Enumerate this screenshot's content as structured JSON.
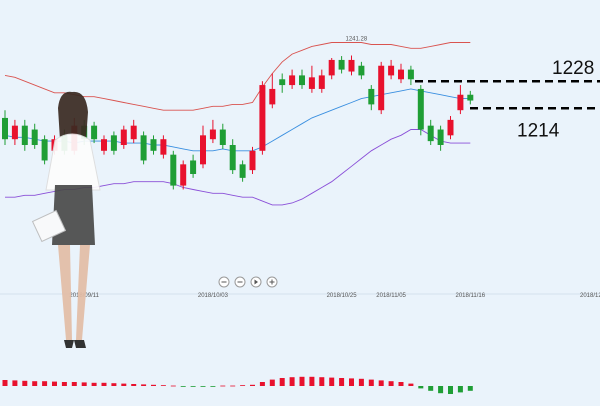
{
  "chart_data": {
    "type": "candlestick",
    "up_color": "#e8112d",
    "down_color": "#1f9e35",
    "ylim": [
      1120,
      1270
    ],
    "categories": [
      null,
      null,
      null,
      null,
      null,
      null,
      null,
      null,
      "2018/09/11",
      null,
      null,
      null,
      null,
      null,
      null,
      null,
      null,
      null,
      null,
      null,
      null,
      "2018/10/03",
      null,
      null,
      null,
      null,
      null,
      null,
      null,
      null,
      null,
      null,
      null,
      null,
      "2018/10/25",
      null,
      null,
      null,
      null,
      "2018/11/05",
      null,
      null,
      null,
      null,
      null,
      null,
      null,
      "2018/11/16"
    ],
    "next_date_label": "2018/12",
    "open": [
      1209,
      1198,
      1205,
      1203,
      1198,
      1192,
      1200,
      1192,
      1205,
      1205,
      1192,
      1200,
      1195,
      1198,
      1200,
      1198,
      1190,
      1190,
      1174,
      1187,
      1185,
      1198,
      1203,
      1195,
      1185,
      1182,
      1192,
      1216,
      1229,
      1226,
      1231,
      1224,
      1224,
      1231,
      1239,
      1233,
      1236,
      1224,
      1213,
      1231,
      1229,
      1234,
      1224,
      1205,
      1203,
      1200,
      1213,
      1221
    ],
    "high": [
      1213,
      1208,
      1208,
      1206,
      1200,
      1200,
      1203,
      1209,
      1208,
      1207,
      1200,
      1202,
      1205,
      1208,
      1202,
      1200,
      1200,
      1192,
      1187,
      1190,
      1205,
      1208,
      1206,
      1198,
      1187,
      1194,
      1228,
      1232,
      1232,
      1234,
      1234,
      1236,
      1234,
      1240,
      1241,
      1241.28,
      1238,
      1226,
      1238,
      1239,
      1237,
      1236,
      1226,
      1208,
      1205,
      1210,
      1226,
      1223
    ],
    "low": [
      1195,
      1195,
      1192,
      1193,
      1185,
      1190,
      1190,
      1190,
      1195,
      1196,
      1190,
      1190,
      1193,
      1196,
      1185,
      1190,
      1188,
      1172,
      1172,
      1178,
      1183,
      1196,
      1193,
      1180,
      1176,
      1180,
      1190,
      1214,
      1222,
      1224,
      1224,
      1222,
      1222,
      1229,
      1232,
      1231,
      1229,
      1213,
      1211,
      1229,
      1227,
      1226,
      1200,
      1195,
      1192,
      1198,
      1211,
      1216
    ],
    "close": [
      1198,
      1205,
      1195,
      1195,
      1187,
      1198,
      1192,
      1205,
      1198,
      1198,
      1198,
      1192,
      1203,
      1205,
      1187,
      1192,
      1198,
      1174,
      1185,
      1180,
      1200,
      1203,
      1195,
      1182,
      1178,
      1192,
      1226,
      1224,
      1226,
      1231,
      1226,
      1230,
      1231,
      1239,
      1234,
      1239,
      1231,
      1216,
      1236,
      1236,
      1234,
      1229,
      1203,
      1197,
      1195,
      1208,
      1221,
      1218
    ],
    "bands": [
      {
        "color": "#d9534f",
        "values": [
          1231,
          1230,
          1228,
          1226,
          1224,
          1222,
          1222,
          1221,
          1220,
          1220,
          1219,
          1218,
          1217,
          1216,
          1215,
          1214,
          1213,
          1213,
          1213,
          1213,
          1214,
          1215,
          1215,
          1216,
          1216,
          1217,
          1225,
          1232,
          1238,
          1242,
          1244,
          1246,
          1247,
          1248,
          1248,
          1248,
          1248,
          1247,
          1247,
          1247,
          1246,
          1245,
          1245,
          1246,
          1247,
          1248,
          1248,
          1248
        ]
      },
      {
        "color": "#3a8fe0",
        "values": [
          1200,
          1199,
          1199,
          1198,
          1197,
          1197,
          1197,
          1196,
          1197,
          1197,
          1197,
          1197,
          1196,
          1196,
          1196,
          1195,
          1195,
          1194,
          1193,
          1192,
          1192,
          1192,
          1193,
          1192,
          1192,
          1192,
          1194,
          1197,
          1200,
          1203,
          1206,
          1209,
          1211,
          1213,
          1215,
          1217,
          1219,
          1220,
          1221,
          1222,
          1223,
          1224,
          1223,
          1222,
          1221,
          1220,
          1219,
          1219
        ]
      },
      {
        "color": "#8a4fd8",
        "values": [
          1168,
          1168,
          1169,
          1169,
          1170,
          1171,
          1172,
          1172,
          1173,
          1173,
          1174,
          1175,
          1175,
          1176,
          1176,
          1176,
          1176,
          1175,
          1173,
          1172,
          1171,
          1170,
          1170,
          1169,
          1168,
          1168,
          1166,
          1164,
          1164,
          1165,
          1167,
          1170,
          1173,
          1176,
          1180,
          1184,
          1188,
          1192,
          1195,
          1198,
          1200,
          1203,
          1203,
          1200,
          1197,
          1196,
          1196,
          1196
        ]
      }
    ],
    "levels": [
      1228,
      1214
    ],
    "macd": [
      1.5,
      1.4,
      1.3,
      1.2,
      1.2,
      1.1,
      1.0,
      1.0,
      0.9,
      0.8,
      0.8,
      0.7,
      0.6,
      0.5,
      0.4,
      0.3,
      0.2,
      0.1,
      -0.1,
      -0.2,
      -0.2,
      -0.1,
      0.1,
      0.1,
      0.2,
      0.3,
      1.0,
      1.6,
      2.0,
      2.2,
      2.3,
      2.3,
      2.2,
      2.1,
      2.0,
      1.9,
      1.8,
      1.6,
      1.4,
      1.2,
      1.0,
      0.6,
      -0.6,
      -1.2,
      -1.8,
      -2.0,
      -1.6,
      -1.2
    ]
  }
}
